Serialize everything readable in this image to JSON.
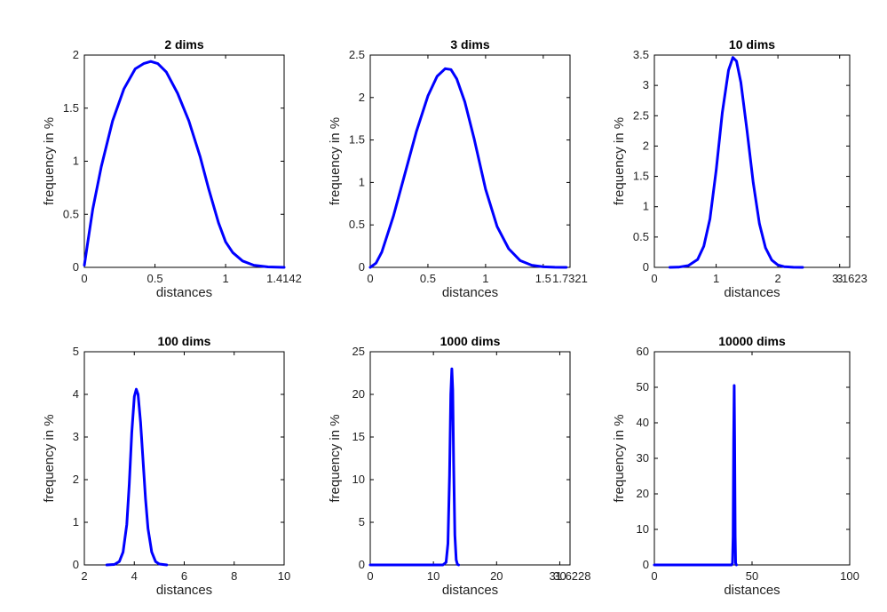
{
  "chart_data": [
    {
      "type": "line",
      "title": "2 dims",
      "xlabel": "distances",
      "ylabel": "frequency in %",
      "xlim": [
        0,
        1.4142
      ],
      "ylim": [
        0,
        2
      ],
      "xticks": [
        0,
        0.5,
        1,
        1.4142
      ],
      "xtick_labels": [
        "0",
        "0.5",
        "1",
        "1.4142"
      ],
      "yticks": [
        0,
        0.5,
        1,
        1.5,
        2
      ],
      "ytick_labels": [
        "0",
        "0.5",
        "1",
        "1.5",
        "2"
      ],
      "color": "#0000ff",
      "series": [
        {
          "name": "2 dims",
          "x": [
            0,
            0.02,
            0.06,
            0.12,
            0.2,
            0.28,
            0.36,
            0.42,
            0.47,
            0.52,
            0.58,
            0.66,
            0.74,
            0.82,
            0.88,
            0.95,
            1.0,
            1.05,
            1.12,
            1.2,
            1.3,
            1.4142
          ],
          "y": [
            0.02,
            0.2,
            0.55,
            0.95,
            1.38,
            1.68,
            1.87,
            1.92,
            1.94,
            1.92,
            1.84,
            1.64,
            1.38,
            1.04,
            0.74,
            0.42,
            0.24,
            0.14,
            0.06,
            0.02,
            0.004,
            0
          ]
        }
      ]
    },
    {
      "type": "line",
      "title": "3 dims",
      "xlabel": "distances",
      "ylabel": "frequency in %",
      "xlim": [
        0,
        1.7321
      ],
      "ylim": [
        0,
        2.5
      ],
      "xticks": [
        0,
        0.5,
        1,
        1.5,
        1.7321
      ],
      "xtick_labels": [
        "0",
        "0.5",
        "1",
        "1.5",
        "1.7321"
      ],
      "yticks": [
        0,
        0.5,
        1,
        1.5,
        2,
        2.5
      ],
      "ytick_labels": [
        "0",
        "0.5",
        "1",
        "1.5",
        "2",
        "2.5"
      ],
      "color": "#0000ff",
      "series": [
        {
          "name": "3 dims",
          "x": [
            0,
            0.05,
            0.1,
            0.2,
            0.3,
            0.4,
            0.5,
            0.58,
            0.65,
            0.7,
            0.75,
            0.82,
            0.9,
            1.0,
            1.1,
            1.2,
            1.3,
            1.4,
            1.5,
            1.6,
            1.7
          ],
          "y": [
            0,
            0.05,
            0.18,
            0.6,
            1.1,
            1.6,
            2.02,
            2.25,
            2.34,
            2.33,
            2.22,
            1.95,
            1.52,
            0.92,
            0.48,
            0.22,
            0.08,
            0.025,
            0.006,
            0.001,
            0
          ]
        }
      ]
    },
    {
      "type": "line",
      "title": "10 dims",
      "xlabel": "distances",
      "ylabel": "frequency in %",
      "xlim": [
        0,
        3.1623
      ],
      "ylim": [
        0,
        3.5
      ],
      "xticks": [
        0,
        1,
        2,
        3,
        3.1623
      ],
      "xtick_labels": [
        "0",
        "1",
        "2",
        "3",
        "3.1623"
      ],
      "yticks": [
        0,
        0.5,
        1,
        1.5,
        2,
        2.5,
        3,
        3.5
      ],
      "ytick_labels": [
        "0",
        "0.5",
        "1",
        "1.5",
        "2",
        "2.5",
        "3",
        "3.5"
      ],
      "color": "#0000ff",
      "series": [
        {
          "name": "10 dims",
          "x": [
            0.25,
            0.4,
            0.55,
            0.7,
            0.8,
            0.9,
            1.0,
            1.1,
            1.2,
            1.27,
            1.33,
            1.4,
            1.5,
            1.6,
            1.7,
            1.8,
            1.9,
            2.0,
            2.1,
            2.25,
            2.4
          ],
          "y": [
            0,
            0.005,
            0.03,
            0.13,
            0.35,
            0.8,
            1.6,
            2.55,
            3.25,
            3.46,
            3.4,
            3.05,
            2.25,
            1.4,
            0.72,
            0.32,
            0.12,
            0.04,
            0.012,
            0.002,
            0
          ]
        }
      ]
    },
    {
      "type": "line",
      "title": "100 dims",
      "xlabel": "distances",
      "ylabel": "frequency in %",
      "xlim": [
        2,
        10
      ],
      "ylim": [
        0,
        5
      ],
      "xticks": [
        2,
        4,
        6,
        8,
        10
      ],
      "xtick_labels": [
        "2",
        "4",
        "6",
        "8",
        "10"
      ],
      "yticks": [
        0,
        1,
        2,
        3,
        4,
        5
      ],
      "ytick_labels": [
        "0",
        "1",
        "2",
        "3",
        "4",
        "5"
      ],
      "color": "#0000ff",
      "series": [
        {
          "name": "100 dims",
          "x": [
            2.9,
            3.2,
            3.4,
            3.55,
            3.7,
            3.8,
            3.9,
            4.0,
            4.08,
            4.15,
            4.25,
            4.35,
            4.45,
            4.55,
            4.7,
            4.85,
            5.0,
            5.3
          ],
          "y": [
            0,
            0.01,
            0.08,
            0.3,
            0.95,
            1.9,
            3.1,
            3.95,
            4.12,
            4.0,
            3.35,
            2.45,
            1.55,
            0.85,
            0.3,
            0.08,
            0.02,
            0
          ]
        }
      ]
    },
    {
      "type": "line",
      "title": "1000 dims",
      "xlabel": "distances",
      "ylabel": "frequency in %",
      "xlim": [
        0,
        31.6228
      ],
      "ylim": [
        0,
        25
      ],
      "xticks": [
        0,
        10,
        20,
        30,
        31.6228
      ],
      "xtick_labels": [
        "0",
        "10",
        "20",
        "30",
        "31.6228"
      ],
      "yticks": [
        0,
        5,
        10,
        15,
        20,
        25
      ],
      "ytick_labels": [
        "0",
        "5",
        "10",
        "15",
        "20",
        "25"
      ],
      "color": "#0000ff",
      "series": [
        {
          "name": "1000 dims",
          "x": [
            0,
            11.5,
            12.0,
            12.3,
            12.55,
            12.75,
            12.92,
            13.05,
            13.2,
            13.4,
            13.6,
            13.8,
            14.0
          ],
          "y": [
            0,
            0,
            0.3,
            2.5,
            10.5,
            20.0,
            23.0,
            20.5,
            12.0,
            3.5,
            0.6,
            0.05,
            0
          ]
        }
      ]
    },
    {
      "type": "line",
      "title": "10000 dims",
      "xlabel": "distances",
      "ylabel": "frequency in %",
      "xlim": [
        0,
        100
      ],
      "ylim": [
        0,
        60
      ],
      "xticks": [
        0,
        50,
        100
      ],
      "xtick_labels": [
        "0",
        "50",
        "100"
      ],
      "yticks": [
        0,
        10,
        20,
        30,
        40,
        50,
        60
      ],
      "ytick_labels": [
        "0",
        "10",
        "20",
        "30",
        "40",
        "50",
        "60"
      ],
      "color": "#0000ff",
      "series": [
        {
          "name": "10000 dims",
          "x": [
            0,
            39.5,
            40.0,
            40.3,
            40.6,
            40.85,
            41.1,
            41.35,
            41.6,
            42.0
          ],
          "y": [
            0,
            0,
            0.5,
            8.0,
            35.0,
            50.5,
            35.0,
            8.0,
            0.5,
            0
          ]
        }
      ]
    }
  ]
}
